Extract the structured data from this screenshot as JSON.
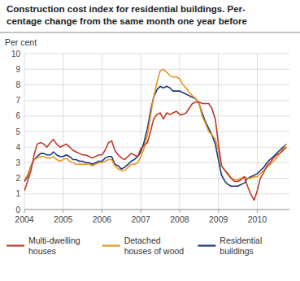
{
  "chart_data": {
    "type": "line",
    "title": "Construction cost index for residential buildings. Per-",
    "subtitle": "centage change from the same month one year before",
    "ylabel": "Per cent",
    "x": [
      2004.0,
      2004.08,
      2004.17,
      2004.25,
      2004.33,
      2004.42,
      2004.5,
      2004.58,
      2004.67,
      2004.75,
      2004.83,
      2004.92,
      2005.0,
      2005.08,
      2005.17,
      2005.25,
      2005.33,
      2005.42,
      2005.5,
      2005.58,
      2005.67,
      2005.75,
      2005.83,
      2005.92,
      2006.0,
      2006.08,
      2006.17,
      2006.25,
      2006.33,
      2006.42,
      2006.5,
      2006.58,
      2006.67,
      2006.75,
      2006.83,
      2006.92,
      2007.0,
      2007.08,
      2007.17,
      2007.25,
      2007.33,
      2007.42,
      2007.5,
      2007.58,
      2007.67,
      2007.75,
      2007.83,
      2007.92,
      2008.0,
      2008.08,
      2008.17,
      2008.25,
      2008.33,
      2008.42,
      2008.5,
      2008.58,
      2008.67,
      2008.75,
      2008.83,
      2008.92,
      2009.0,
      2009.08,
      2009.17,
      2009.25,
      2009.33,
      2009.42,
      2009.5,
      2009.58,
      2009.67,
      2009.75,
      2009.83,
      2009.92,
      2010.0,
      2010.08,
      2010.17,
      2010.25,
      2010.33,
      2010.42,
      2010.5,
      2010.58,
      2010.67,
      2010.75
    ],
    "series": [
      {
        "name": "Multi-dwelling\nhouses",
        "color": "#c0392b",
        "values": [
          1.2,
          1.8,
          2.5,
          3.5,
          4.2,
          4.3,
          4.2,
          4.0,
          4.3,
          4.5,
          4.2,
          4.0,
          4.1,
          4.2,
          4.0,
          3.8,
          3.7,
          3.6,
          3.5,
          3.5,
          3.4,
          3.3,
          3.4,
          3.5,
          3.5,
          3.8,
          4.3,
          4.4,
          3.8,
          3.5,
          3.3,
          3.2,
          3.4,
          3.6,
          3.5,
          3.4,
          3.9,
          4.1,
          4.3,
          5.0,
          5.8,
          6.1,
          6.2,
          5.8,
          6.2,
          6.1,
          6.2,
          6.3,
          6.1,
          6.1,
          6.2,
          6.5,
          6.8,
          6.9,
          6.9,
          6.8,
          6.8,
          6.8,
          6.5,
          5.8,
          4.2,
          2.8,
          2.5,
          2.3,
          2.0,
          1.8,
          1.8,
          1.9,
          2.1,
          1.5,
          1.0,
          0.6,
          1.2,
          2.0,
          2.4,
          2.8,
          3.0,
          3.3,
          3.5,
          3.6,
          3.8,
          4.0
        ]
      },
      {
        "name": "Detached\nhouses of wood",
        "color": "#e8961e",
        "values": [
          1.9,
          2.2,
          2.8,
          3.2,
          3.3,
          3.4,
          3.4,
          3.3,
          3.3,
          3.4,
          3.2,
          3.1,
          3.2,
          3.3,
          3.1,
          3.0,
          2.9,
          2.9,
          2.9,
          2.9,
          2.9,
          2.8,
          2.9,
          3.0,
          3.0,
          3.1,
          3.2,
          3.2,
          2.8,
          2.6,
          2.5,
          2.5,
          2.7,
          2.9,
          2.9,
          3.0,
          3.4,
          3.9,
          4.8,
          6.0,
          7.2,
          8.2,
          8.9,
          9.0,
          8.8,
          8.6,
          8.5,
          8.5,
          8.4,
          8.0,
          7.8,
          7.5,
          7.3,
          7.1,
          6.8,
          6.0,
          5.5,
          5.0,
          4.8,
          4.5,
          3.8,
          2.8,
          2.5,
          2.2,
          2.0,
          1.9,
          1.9,
          2.0,
          2.1,
          2.0,
          2.0,
          2.1,
          2.1,
          2.3,
          2.5,
          2.7,
          2.9,
          3.1,
          3.3,
          3.6,
          3.9,
          4.2
        ]
      },
      {
        "name": "Residential\nbuildings",
        "color": "#1a3a7a",
        "values": [
          1.8,
          2.1,
          2.8,
          3.2,
          3.4,
          3.6,
          3.6,
          3.5,
          3.5,
          3.7,
          3.5,
          3.4,
          3.4,
          3.5,
          3.4,
          3.2,
          3.2,
          3.1,
          3.1,
          3.0,
          3.0,
          2.9,
          3.0,
          3.1,
          3.1,
          3.3,
          3.4,
          3.4,
          2.9,
          2.8,
          2.6,
          2.7,
          2.9,
          3.1,
          3.2,
          3.4,
          3.7,
          4.3,
          5.2,
          6.3,
          7.2,
          7.7,
          7.9,
          7.8,
          7.9,
          7.8,
          7.6,
          7.6,
          7.6,
          7.5,
          7.4,
          7.3,
          7.2,
          7.1,
          6.8,
          6.2,
          5.6,
          5.2,
          4.8,
          4.2,
          3.2,
          2.2,
          1.8,
          1.6,
          1.5,
          1.5,
          1.5,
          1.6,
          1.7,
          2.0,
          2.1,
          2.2,
          2.3,
          2.5,
          2.7,
          3.0,
          3.2,
          3.4,
          3.6,
          3.8,
          4.0,
          4.2
        ]
      }
    ],
    "xlim": [
      2004.0,
      2010.83
    ],
    "xticks": [
      2004,
      2005,
      2006,
      2007,
      2008,
      2009,
      2010
    ],
    "ylim": [
      0,
      10
    ],
    "yticks": [
      0,
      1,
      2,
      3,
      4,
      5,
      6,
      7,
      8,
      9,
      10
    ],
    "grid": true,
    "legend": "bottom"
  }
}
